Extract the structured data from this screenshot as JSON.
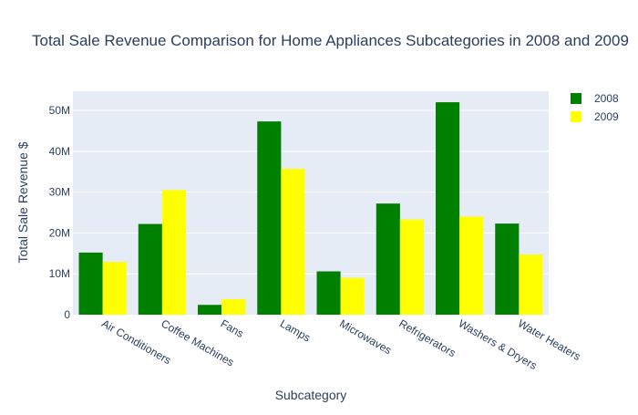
{
  "chart_data": {
    "type": "bar",
    "title": "Total Sale Revenue Comparison for Home Appliances Subcategories in 2008 and 2009",
    "xlabel": "Subcategory",
    "ylabel": "Total Sale Revenue $",
    "categories": [
      "Air Conditioners",
      "Coffee Machines",
      "Fans",
      "Lamps",
      "Microwaves",
      "Refrigerators",
      "Washers & Dryers",
      "Water Heaters"
    ],
    "series": [
      {
        "name": "2008",
        "color": "#008000",
        "values": [
          15200000,
          22200000,
          2400000,
          47300000,
          10600000,
          27200000,
          52000000,
          22300000
        ]
      },
      {
        "name": "2009",
        "color": "#ffff00",
        "values": [
          12900000,
          30500000,
          3800000,
          35700000,
          9000000,
          23300000,
          24000000,
          14700000
        ]
      }
    ],
    "ylim": [
      0,
      54700000
    ],
    "yticks": [
      {
        "value": 0,
        "label": "0"
      },
      {
        "value": 10000000,
        "label": "10M"
      },
      {
        "value": 20000000,
        "label": "20M"
      },
      {
        "value": 30000000,
        "label": "30M"
      },
      {
        "value": 40000000,
        "label": "40M"
      },
      {
        "value": 50000000,
        "label": "50M"
      }
    ],
    "grid": true,
    "legend_position": "top-right",
    "plot_background": "#e5ecf6"
  }
}
